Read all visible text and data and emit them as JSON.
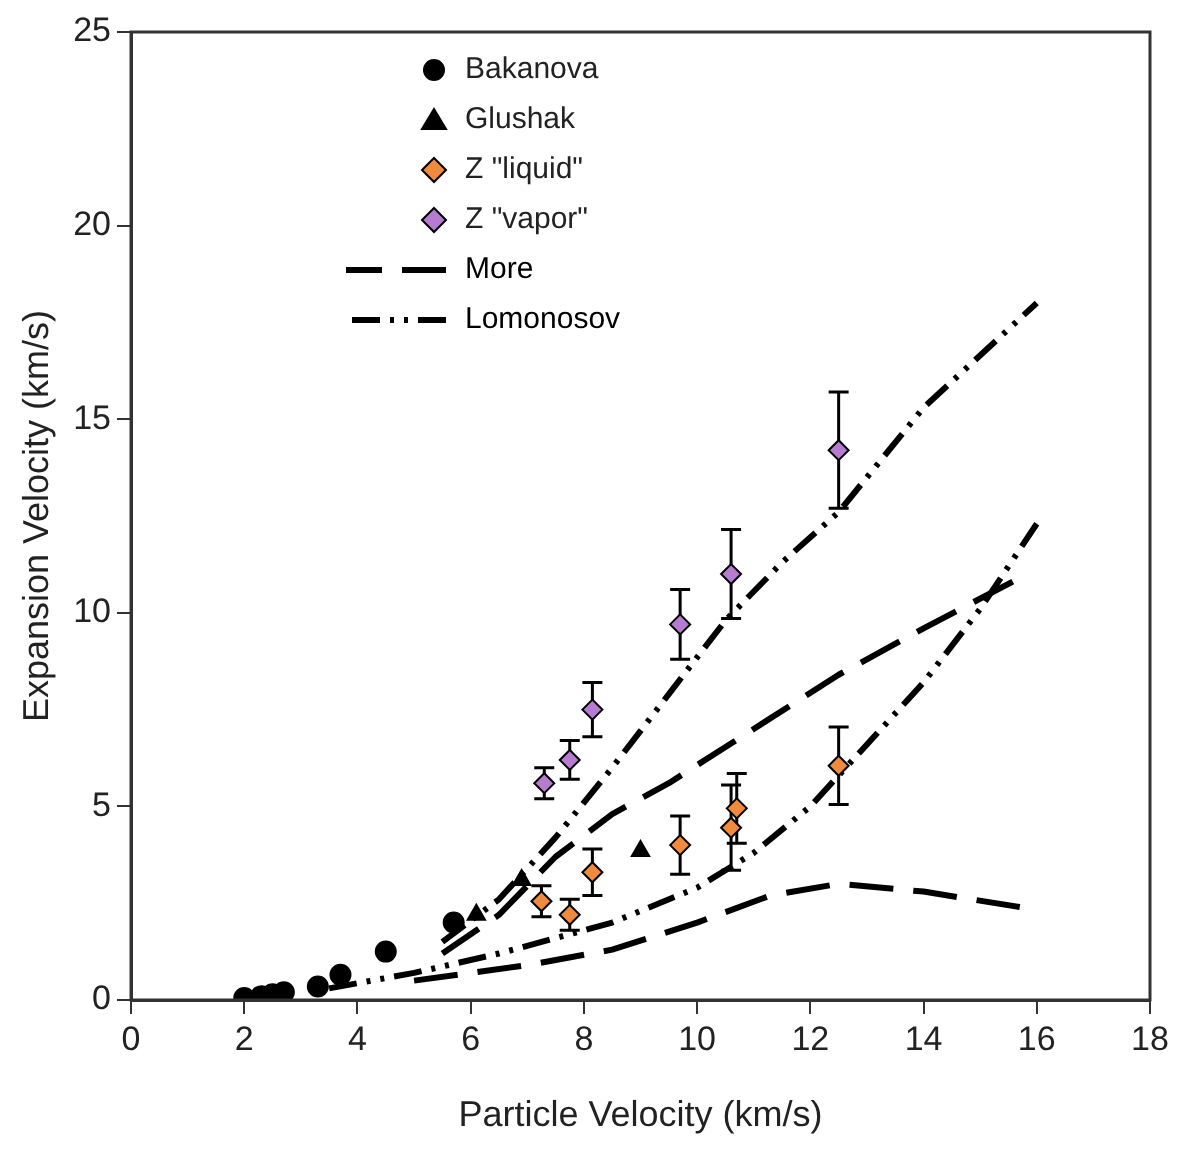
{
  "chart_data": {
    "type": "scatter",
    "xlabel": "Particle Velocity (km/s)",
    "ylabel": "Expansion Velocity (km/s)",
    "xlim": [
      0,
      18
    ],
    "xticks": [
      0,
      2,
      4,
      6,
      8,
      10,
      12,
      14,
      16,
      18
    ],
    "ylim": [
      0,
      25
    ],
    "yticks": [
      0,
      5,
      10,
      15,
      20,
      25
    ],
    "grid": false,
    "legend": "top left",
    "series": [
      {
        "name": "Bakanova",
        "type": "scatter",
        "marker": "circle",
        "color": "#000000",
        "x": [
          2.0,
          2.3,
          2.5,
          2.7,
          3.3,
          3.7,
          4.5,
          5.7
        ],
        "values": [
          0.05,
          0.1,
          0.15,
          0.2,
          0.35,
          0.65,
          1.25,
          2.0
        ]
      },
      {
        "name": "Glushak",
        "type": "scatter",
        "marker": "triangle",
        "color": "#000000",
        "x": [
          6.1,
          6.9,
          9.0
        ],
        "values": [
          2.2,
          3.1,
          3.85
        ]
      },
      {
        "name": "Z \"liquid\"",
        "type": "scatter",
        "marker": "diamond",
        "color": "#f08a3c",
        "x": [
          7.25,
          7.75,
          8.15,
          9.7,
          10.6,
          10.7,
          12.5
        ],
        "values": [
          2.55,
          2.2,
          3.3,
          4.0,
          4.45,
          4.95,
          6.05
        ],
        "errors": [
          0.4,
          0.4,
          0.6,
          0.75,
          1.1,
          0.9,
          1.0
        ]
      },
      {
        "name": "Z \"vapor\"",
        "type": "scatter",
        "marker": "diamond",
        "color": "#b77bd0",
        "x": [
          7.3,
          7.75,
          8.15,
          9.7,
          10.6,
          12.5
        ],
        "values": [
          5.6,
          6.2,
          7.5,
          9.7,
          11.0,
          14.2
        ],
        "errors": [
          0.4,
          0.5,
          0.7,
          0.9,
          1.15,
          1.5
        ]
      },
      {
        "name": "More",
        "type": "line",
        "line_style": "dashed",
        "color": "#000000",
        "x": [
          5.5,
          6.5,
          7.5,
          8.5,
          9.5,
          11,
          12.5,
          14,
          15.7
        ],
        "values": [
          1.2,
          2.2,
          3.7,
          4.8,
          5.6,
          7.0,
          8.4,
          9.6,
          10.9
        ]
      },
      {
        "type": "line",
        "line_style": "dashed",
        "color": "#000000",
        "x": [
          5,
          7,
          8.5,
          10,
          11.3,
          12.5,
          14,
          15.7
        ],
        "values": [
          0.5,
          0.9,
          1.3,
          2.0,
          2.7,
          3.0,
          2.8,
          2.4
        ]
      },
      {
        "name": "Lomonosov",
        "type": "line",
        "line_style": "dotted",
        "color": "#000000",
        "x": [
          5.5,
          6.5,
          7.5,
          8.5,
          9.5,
          10.5,
          11.5,
          12.5,
          14,
          16
        ],
        "values": [
          1.5,
          2.6,
          4.2,
          6.0,
          7.9,
          9.8,
          11.3,
          12.6,
          15.3,
          18.0
        ]
      },
      {
        "type": "line",
        "line_style": "dotted",
        "color": "#000000",
        "x": [
          3.5,
          5,
          6.5,
          8.5,
          10,
          11,
          12,
          13,
          14,
          15,
          16
        ],
        "values": [
          0.3,
          0.7,
          1.2,
          2.0,
          2.9,
          3.8,
          5.0,
          6.6,
          8.2,
          10.1,
          12.3
        ]
      }
    ]
  }
}
